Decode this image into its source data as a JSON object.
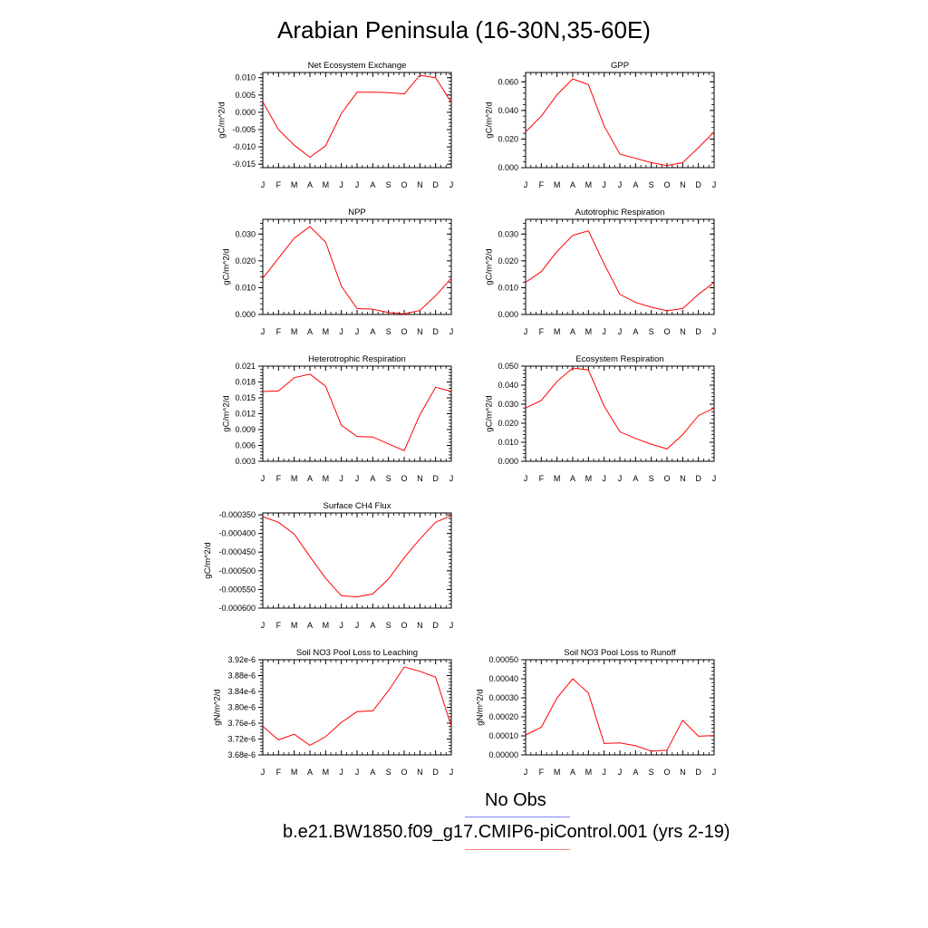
{
  "title": "Arabian Peninsula (16-30N,35-60E)",
  "legend": {
    "obs_label": "No Obs",
    "obs_color": "#8080ff",
    "model_label": "b.e21.BW1850.f09_g17.CMIP6-piControl.001 (yrs 2-19)",
    "model_color": "#ff8080"
  },
  "chart_data": [
    {
      "type": "line",
      "title": "Net Ecosystem Exchange",
      "ylabel": "gC/m^2/d",
      "categories": [
        "J",
        "F",
        "M",
        "A",
        "M",
        "J",
        "J",
        "A",
        "S",
        "O",
        "N",
        "D",
        "J"
      ],
      "ylim": [
        -0.016,
        0.0115
      ],
      "yticks": [
        0.01,
        0.005,
        0.0,
        -0.005,
        -0.01,
        -0.015
      ],
      "ytick_labels": [
        "0.010",
        "0.005",
        "0.000",
        "-0.005",
        "-0.010",
        "-0.015"
      ],
      "series": [
        {
          "color": "#ff0000",
          "values": [
            0.003,
            -0.005,
            -0.0095,
            -0.013,
            -0.0097,
            -0.0003,
            0.0058,
            0.0058,
            0.0057,
            0.0053,
            0.0107,
            0.01,
            0.0028
          ]
        }
      ]
    },
    {
      "type": "line",
      "title": "GPP",
      "ylabel": "gC/m^2/d",
      "categories": [
        "J",
        "F",
        "M",
        "A",
        "M",
        "J",
        "J",
        "A",
        "S",
        "O",
        "N",
        "D",
        "J"
      ],
      "ylim": [
        0,
        0.0665
      ],
      "yticks": [
        0.0,
        0.02,
        0.04,
        0.06
      ],
      "ytick_labels": [
        "0.000",
        "0.020",
        "0.040",
        "0.060"
      ],
      "series": [
        {
          "color": "#ff0000",
          "values": [
            0.025,
            0.036,
            0.051,
            0.062,
            0.058,
            0.029,
            0.0095,
            0.0065,
            0.0035,
            0.0015,
            0.0035,
            0.014,
            0.025
          ]
        }
      ]
    },
    {
      "type": "line",
      "title": "NPP",
      "ylabel": "gC/m^2/d",
      "categories": [
        "J",
        "F",
        "M",
        "A",
        "M",
        "J",
        "J",
        "A",
        "S",
        "O",
        "N",
        "D",
        "J"
      ],
      "ylim": [
        0,
        0.0355
      ],
      "yticks": [
        0.0,
        0.01,
        0.02,
        0.03
      ],
      "ytick_labels": [
        "0.000",
        "0.010",
        "0.020",
        "0.030"
      ],
      "series": [
        {
          "color": "#ff0000",
          "values": [
            0.0135,
            0.021,
            0.0285,
            0.0328,
            0.027,
            0.0105,
            0.0022,
            0.002,
            0.0007,
            0.0002,
            0.0015,
            0.007,
            0.0135
          ]
        }
      ]
    },
    {
      "type": "line",
      "title": "Autotrophic Respiration",
      "ylabel": "gC/m^2/d",
      "categories": [
        "J",
        "F",
        "M",
        "A",
        "M",
        "J",
        "J",
        "A",
        "S",
        "O",
        "N",
        "D",
        "J"
      ],
      "ylim": [
        0,
        0.0355
      ],
      "yticks": [
        0.0,
        0.01,
        0.02,
        0.03
      ],
      "ytick_labels": [
        "0.000",
        "0.010",
        "0.020",
        "0.030"
      ],
      "series": [
        {
          "color": "#ff0000",
          "values": [
            0.012,
            0.016,
            0.0235,
            0.0295,
            0.0312,
            0.0188,
            0.0075,
            0.0045,
            0.0027,
            0.0014,
            0.0022,
            0.0075,
            0.012
          ]
        }
      ]
    },
    {
      "type": "line",
      "title": "Heterotrophic Respiration",
      "ylabel": "gC/m^2/d",
      "categories": [
        "J",
        "F",
        "M",
        "A",
        "M",
        "J",
        "J",
        "A",
        "S",
        "O",
        "N",
        "D",
        "J"
      ],
      "ylim": [
        0.003,
        0.021
      ],
      "yticks": [
        0.003,
        0.006,
        0.009,
        0.012,
        0.015,
        0.018,
        0.021
      ],
      "ytick_labels": [
        "0.003",
        "0.006",
        "0.009",
        "0.012",
        "0.015",
        "0.018",
        "0.021"
      ],
      "series": [
        {
          "color": "#ff0000",
          "values": [
            0.0162,
            0.0163,
            0.0188,
            0.0195,
            0.0172,
            0.0098,
            0.0077,
            0.0076,
            0.0063,
            0.005,
            0.0118,
            0.017,
            0.0162
          ]
        }
      ]
    },
    {
      "type": "line",
      "title": "Ecosystem Respiration",
      "ylabel": "gC/m^2/d",
      "categories": [
        "J",
        "F",
        "M",
        "A",
        "M",
        "J",
        "J",
        "A",
        "S",
        "O",
        "N",
        "D",
        "J"
      ],
      "ylim": [
        0,
        0.05
      ],
      "yticks": [
        0.0,
        0.01,
        0.02,
        0.03,
        0.04,
        0.05
      ],
      "ytick_labels": [
        "0.000",
        "0.010",
        "0.020",
        "0.030",
        "0.040",
        "0.050"
      ],
      "series": [
        {
          "color": "#ff0000",
          "values": [
            0.028,
            0.032,
            0.042,
            0.049,
            0.048,
            0.029,
            0.0155,
            0.012,
            0.009,
            0.0065,
            0.014,
            0.024,
            0.028
          ]
        }
      ]
    },
    {
      "type": "line",
      "title": "Surface CH4 Flux",
      "ylabel": "gC/m^2/d",
      "categories": [
        "J",
        "F",
        "M",
        "A",
        "M",
        "J",
        "J",
        "A",
        "S",
        "O",
        "N",
        "D",
        "J"
      ],
      "ylim": [
        -0.0006,
        -0.000345
      ],
      "yticks": [
        -0.00035,
        -0.0004,
        -0.00045,
        -0.0005,
        -0.00055,
        -0.0006
      ],
      "ytick_labels": [
        "-0.000350",
        "-0.000400",
        "-0.000450",
        "-0.000500",
        "-0.000550",
        "-0.000600"
      ],
      "series": [
        {
          "color": "#ff0000",
          "values": [
            -0.000355,
            -0.00037,
            -0.000402,
            -0.000462,
            -0.00052,
            -0.000567,
            -0.00057,
            -0.000562,
            -0.000522,
            -0.000465,
            -0.000415,
            -0.00037,
            -0.000352
          ]
        }
      ]
    },
    {
      "type": "line",
      "title": "Soil NO3 Pool Loss to Leaching",
      "ylabel": "gN/m^2/d",
      "categories": [
        "J",
        "F",
        "M",
        "A",
        "M",
        "J",
        "J",
        "A",
        "S",
        "O",
        "N",
        "D",
        "J"
      ],
      "ylim": [
        3.68e-06,
        3.92e-06
      ],
      "yticks": [
        3.68e-06,
        3.72e-06,
        3.76e-06,
        3.8e-06,
        3.84e-06,
        3.88e-06,
        3.92e-06
      ],
      "ytick_labels": [
        "3.68e-6",
        "3.72e-6",
        "3.76e-6",
        "3.80e-6",
        "3.84e-6",
        "3.88e-6",
        "3.92e-6"
      ],
      "series": [
        {
          "color": "#ff0000",
          "values": [
            3.752e-06,
            3.718e-06,
            3.732e-06,
            3.704e-06,
            3.726e-06,
            3.762e-06,
            3.789e-06,
            3.791e-06,
            3.842e-06,
            3.902e-06,
            3.891e-06,
            3.876e-06,
            3.752e-06
          ]
        }
      ]
    },
    {
      "type": "line",
      "title": "Soil NO3 Pool Loss to Runoff",
      "ylabel": "gN/m^2/d",
      "categories": [
        "J",
        "F",
        "M",
        "A",
        "M",
        "J",
        "J",
        "A",
        "S",
        "O",
        "N",
        "D",
        "J"
      ],
      "ylim": [
        0,
        0.0005
      ],
      "yticks": [
        0.0,
        0.0001,
        0.0002,
        0.0003,
        0.0004,
        0.0005
      ],
      "ytick_labels": [
        "0.00000",
        "0.00010",
        "0.00020",
        "0.00030",
        "0.00040",
        "0.00050"
      ],
      "series": [
        {
          "color": "#ff0000",
          "values": [
            0.000105,
            0.000145,
            0.0003,
            0.0004,
            0.000325,
            6e-05,
            6.3e-05,
            4.8e-05,
            2e-05,
            2.5e-05,
            0.000182,
            9.8e-05,
            0.000102
          ]
        }
      ]
    }
  ]
}
